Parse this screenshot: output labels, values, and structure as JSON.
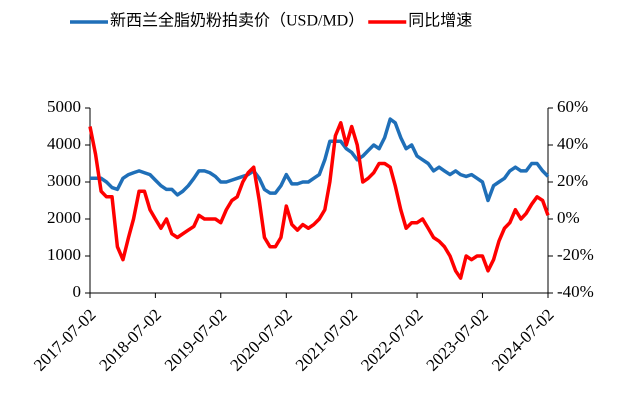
{
  "chart_data": {
    "type": "line",
    "x": [
      "2017-07-02",
      "2017-08-02",
      "2017-09-02",
      "2017-10-02",
      "2017-11-02",
      "2017-12-02",
      "2018-01-02",
      "2018-02-02",
      "2018-03-02",
      "2018-04-02",
      "2018-05-02",
      "2018-06-02",
      "2018-07-02",
      "2018-08-02",
      "2018-09-02",
      "2018-10-02",
      "2018-11-02",
      "2018-12-02",
      "2019-01-02",
      "2019-02-02",
      "2019-03-02",
      "2019-04-02",
      "2019-05-02",
      "2019-06-02",
      "2019-07-02",
      "2019-08-02",
      "2019-09-02",
      "2019-10-02",
      "2019-11-02",
      "2019-12-02",
      "2020-01-02",
      "2020-02-02",
      "2020-03-02",
      "2020-04-02",
      "2020-05-02",
      "2020-06-02",
      "2020-07-02",
      "2020-08-02",
      "2020-09-02",
      "2020-10-02",
      "2020-11-02",
      "2020-12-02",
      "2021-01-02",
      "2021-02-02",
      "2021-03-02",
      "2021-04-02",
      "2021-05-02",
      "2021-06-02",
      "2021-07-02",
      "2021-08-02",
      "2021-09-02",
      "2021-10-02",
      "2021-11-02",
      "2021-12-02",
      "2022-01-02",
      "2022-02-02",
      "2022-03-02",
      "2022-04-02",
      "2022-05-02",
      "2022-06-02",
      "2022-07-02",
      "2022-08-02",
      "2022-09-02",
      "2022-10-02",
      "2022-11-02",
      "2022-12-02",
      "2023-01-02",
      "2023-02-02",
      "2023-03-02",
      "2023-04-02",
      "2023-05-02",
      "2023-06-02",
      "2023-07-02",
      "2023-08-02",
      "2023-09-02",
      "2023-10-02",
      "2023-11-02",
      "2023-12-02",
      "2024-01-02",
      "2024-02-02",
      "2024-03-02",
      "2024-04-02",
      "2024-05-02",
      "2024-06-02",
      "2024-07-02"
    ],
    "series": [
      {
        "name": "新西兰全脂奶粉拍卖价（USD/MD）",
        "color": "#1f6fb8",
        "values": [
          3100,
          3100,
          3100,
          3000,
          2850,
          2800,
          3100,
          3200,
          3250,
          3300,
          3250,
          3200,
          3050,
          2900,
          2800,
          2800,
          2650,
          2750,
          2900,
          3100,
          3300,
          3300,
          3250,
          3150,
          3000,
          3000,
          3050,
          3100,
          3150,
          3200,
          3300,
          3100,
          2800,
          2700,
          2700,
          2900,
          3200,
          2950,
          2950,
          3000,
          3000,
          3100,
          3200,
          3600,
          4100,
          4100,
          4100,
          3900,
          3800,
          3600,
          3700,
          3850,
          4000,
          3900,
          4200,
          4700,
          4600,
          4200,
          3900,
          4000,
          3700,
          3600,
          3500,
          3300,
          3400,
          3300,
          3200,
          3300,
          3200,
          3150,
          3200,
          3100,
          3000,
          2500,
          2900,
          3000,
          3100,
          3300,
          3400,
          3300,
          3300,
          3500,
          3500,
          3300,
          3150
        ]
      },
      {
        "name": "同比增速",
        "color": "#ff0000",
        "axis": "y2",
        "values": [
          50,
          35,
          15,
          12,
          12,
          -15,
          -22,
          -10,
          0,
          15,
          15,
          5,
          0,
          -5,
          0,
          -8,
          -10,
          -8,
          -6,
          -4,
          2,
          0,
          0,
          0,
          -2,
          5,
          10,
          12,
          20,
          25,
          28,
          10,
          -10,
          -15,
          -15,
          -10,
          7,
          -3,
          -6,
          -3,
          -5,
          -3,
          0,
          5,
          20,
          45,
          52,
          40,
          50,
          40,
          20,
          22,
          25,
          30,
          30,
          28,
          18,
          5,
          -5,
          -2,
          -2,
          0,
          -5,
          -10,
          -12,
          -15,
          -20,
          -28,
          -32,
          -20,
          -22,
          -20,
          -20,
          -28,
          -22,
          -12,
          -5,
          -2,
          5,
          0,
          3,
          8,
          12,
          10,
          2
        ]
      }
    ],
    "xlim": [
      "2017-07-02",
      "2024-07-02"
    ],
    "xticks": [
      "2017-07-02",
      "2018-07-02",
      "2019-07-02",
      "2020-07-02",
      "2021-07-02",
      "2022-07-02",
      "2023-07-02",
      "2024-07-02"
    ],
    "ylim": [
      0,
      5000
    ],
    "yticks": [
      0,
      1000,
      2000,
      3000,
      4000,
      5000
    ],
    "y2lim": [
      -40,
      60
    ],
    "y2ticks": [
      {
        "value": -40,
        "label": "-40%"
      },
      {
        "value": -20,
        "label": "-20%"
      },
      {
        "value": 0,
        "label": "0%"
      },
      {
        "value": 20,
        "label": "20%"
      },
      {
        "value": 40,
        "label": "40%"
      },
      {
        "value": 60,
        "label": "60%"
      }
    ],
    "legend": "top"
  }
}
